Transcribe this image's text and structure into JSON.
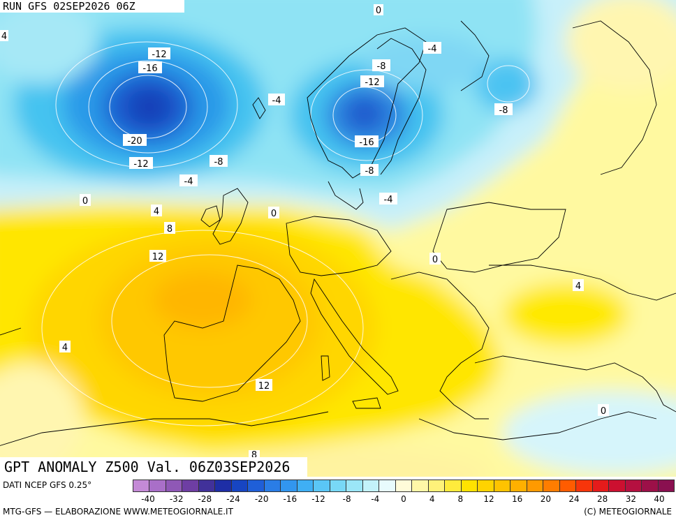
{
  "run_label": "RUN GFS 02SEP2026 06Z",
  "title": "GPT ANOMALY Z500 Val. 06Z03SEP2026",
  "source": "DATI NCEP GFS 0.25°",
  "credit_left": "MTG-GFS — ELABORAZIONE WWW.METEOGIORNALE.IT",
  "credit_right": "(C) METEOGIORNALE",
  "colorbar": {
    "ticks": [
      "-40",
      "-32",
      "-28",
      "-24",
      "-20",
      "-16",
      "-12",
      "-8",
      "-4",
      "0",
      "4",
      "8",
      "12",
      "16",
      "20",
      "24",
      "28",
      "32",
      "40"
    ],
    "colors": [
      "#c48ad6",
      "#a96fc8",
      "#8f58b6",
      "#6e3ea3",
      "#41319a",
      "#1e2ea6",
      "#1745c2",
      "#1f5fd8",
      "#2a7de6",
      "#3296ef",
      "#3faff4",
      "#5ac6f6",
      "#78d8f6",
      "#9be6f7",
      "#c3f2fa",
      "#e8fbfd",
      "#fffbd9",
      "#fff7a8",
      "#fff27a",
      "#ffeb3c",
      "#ffe200",
      "#ffd300",
      "#ffc300",
      "#ffb000",
      "#ff9a00",
      "#ff7d00",
      "#ff5c00",
      "#f7350a",
      "#e51b1b",
      "#cc1030",
      "#b51040",
      "#9c1048",
      "#8a1050"
    ]
  },
  "contour_labels": [
    "0",
    "4",
    "-12",
    "-16",
    "-4",
    "-20",
    "-12",
    "-8",
    "-4",
    "0",
    "4",
    "0",
    "8",
    "12",
    "-4",
    "-8",
    "-12",
    "-16",
    "-8",
    "-4",
    "0",
    "-8",
    "4",
    "4",
    "12",
    "0",
    "8"
  ]
}
